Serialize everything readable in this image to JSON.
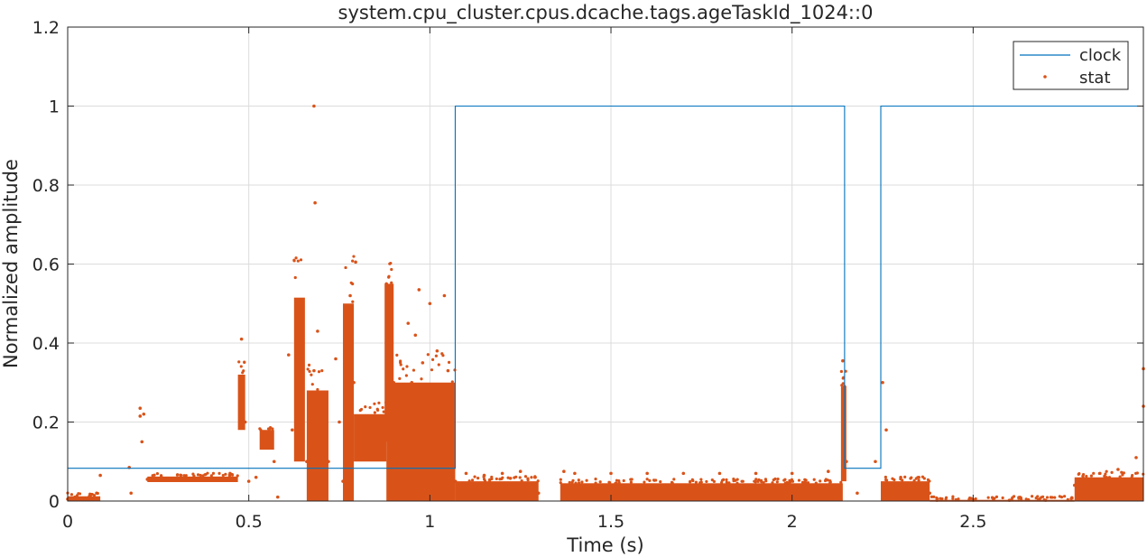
{
  "chart_data": {
    "type": "line",
    "title": "system.cpu_cluster.cpus.dcache.tags.ageTaskId_1024::0",
    "xlabel": "Time (s)",
    "ylabel": "Normalized amplitude",
    "xlim": [
      0,
      2.97
    ],
    "ylim": [
      0,
      1.2
    ],
    "grid": true,
    "legend_position": "top-right",
    "x_ticks": [
      0,
      0.5,
      1,
      1.5,
      2,
      2.5
    ],
    "x_tick_labels": [
      "0",
      "0.5",
      "1",
      "1.5",
      "2",
      "2.5"
    ],
    "y_ticks": [
      0,
      0.2,
      0.4,
      0.6,
      0.8,
      1,
      1.2
    ],
    "y_tick_labels": [
      "0",
      "0.2",
      "0.4",
      "0.6",
      "0.8",
      "1",
      "1.2"
    ],
    "series": [
      {
        "name": "clock",
        "style": "line",
        "color": "#0072BD",
        "x": [
          0,
          1.07,
          1.07,
          2.145,
          2.145,
          2.245,
          2.245,
          2.97
        ],
        "y": [
          0.083,
          0.083,
          1,
          1,
          0.083,
          0.083,
          1,
          1
        ]
      },
      {
        "name": "stat",
        "style": "markers",
        "color": "#D95319",
        "points": [
          [
            0.0,
            0.005
          ],
          [
            0.02,
            0.01
          ],
          [
            0.04,
            0.003
          ],
          [
            0.06,
            0.012
          ],
          [
            0.08,
            0.02
          ],
          [
            0.09,
            0.065
          ],
          [
            0.17,
            0.085
          ],
          [
            0.175,
            0.02
          ],
          [
            0.2,
            0.235
          ],
          [
            0.2,
            0.215
          ],
          [
            0.21,
            0.22
          ],
          [
            0.205,
            0.15
          ],
          [
            0.22,
            0.055
          ],
          [
            0.25,
            0.055
          ],
          [
            0.3,
            0.055
          ],
          [
            0.35,
            0.055
          ],
          [
            0.4,
            0.055
          ],
          [
            0.45,
            0.055
          ],
          [
            0.48,
            0.41
          ],
          [
            0.48,
            0.3
          ],
          [
            0.485,
            0.22
          ],
          [
            0.49,
            0.2
          ],
          [
            0.5,
            0.05
          ],
          [
            0.52,
            0.06
          ],
          [
            0.54,
            0.16
          ],
          [
            0.55,
            0.175
          ],
          [
            0.56,
            0.15
          ],
          [
            0.55,
            0.14
          ],
          [
            0.57,
            0.1
          ],
          [
            0.58,
            0.01
          ],
          [
            0.61,
            0.37
          ],
          [
            0.62,
            0.18
          ],
          [
            0.635,
            0.51
          ],
          [
            0.645,
            0.5
          ],
          [
            0.64,
            0.3
          ],
          [
            0.65,
            0.15
          ],
          [
            0.66,
            0.1
          ],
          [
            0.665,
            0.05
          ],
          [
            0.68,
            0.33
          ],
          [
            0.68,
            1.0
          ],
          [
            0.683,
            0.755
          ],
          [
            0.69,
            0.43
          ],
          [
            0.7,
            0.25
          ],
          [
            0.71,
            0.2
          ],
          [
            0.72,
            0.1
          ],
          [
            0.74,
            0.36
          ],
          [
            0.75,
            0.2
          ],
          [
            0.76,
            0.05
          ],
          [
            0.78,
            0.52
          ],
          [
            0.785,
            0.45
          ],
          [
            0.79,
            0.3
          ],
          [
            0.795,
            0.605
          ],
          [
            0.8,
            0.2
          ],
          [
            0.82,
            0.18
          ],
          [
            0.84,
            0.15
          ],
          [
            0.86,
            0.2
          ],
          [
            0.88,
            0.55
          ],
          [
            0.885,
            0.52
          ],
          [
            0.89,
            0.4
          ],
          [
            0.9,
            0.3
          ],
          [
            0.92,
            0.25
          ],
          [
            0.94,
            0.45
          ],
          [
            0.95,
            0.3
          ],
          [
            0.96,
            0.42
          ],
          [
            0.97,
            0.535
          ],
          [
            0.98,
            0.35
          ],
          [
            1.0,
            0.5
          ],
          [
            1.02,
            0.38
          ],
          [
            1.04,
            0.52
          ],
          [
            1.05,
            0.33
          ],
          [
            1.06,
            0.28
          ],
          [
            1.07,
            0.05
          ],
          [
            1.1,
            0.07
          ],
          [
            1.15,
            0.065
          ],
          [
            1.2,
            0.07
          ],
          [
            1.25,
            0.075
          ],
          [
            1.3,
            0.02
          ],
          [
            1.37,
            0.075
          ],
          [
            1.4,
            0.07
          ],
          [
            1.5,
            0.07
          ],
          [
            1.6,
            0.07
          ],
          [
            1.7,
            0.07
          ],
          [
            1.8,
            0.07
          ],
          [
            1.9,
            0.07
          ],
          [
            2.0,
            0.07
          ],
          [
            2.1,
            0.075
          ],
          [
            2.14,
            0.355
          ],
          [
            2.145,
            0.29
          ],
          [
            2.15,
            0.1
          ],
          [
            2.18,
            0.02
          ],
          [
            2.23,
            0.1
          ],
          [
            2.25,
            0.3
          ],
          [
            2.26,
            0.18
          ],
          [
            2.3,
            0.06
          ],
          [
            2.35,
            0.06
          ],
          [
            2.38,
            0.02
          ],
          [
            2.4,
            0.002
          ],
          [
            2.5,
            0.002
          ],
          [
            2.6,
            0.002
          ],
          [
            2.7,
            0.002
          ],
          [
            2.78,
            0.04
          ],
          [
            2.85,
            0.07
          ],
          [
            2.9,
            0.08
          ],
          [
            2.95,
            0.11
          ],
          [
            2.97,
            0.335
          ],
          [
            2.97,
            0.24
          ]
        ],
        "dense_bands": [
          {
            "x": [
              0.0,
              0.09
            ],
            "y": [
              0.0,
              0.012
            ]
          },
          {
            "x": [
              0.22,
              0.47
            ],
            "y": [
              0.048,
              0.062
            ]
          },
          {
            "x": [
              0.47,
              0.49
            ],
            "y": [
              0.18,
              0.32
            ]
          },
          {
            "x": [
              0.53,
              0.57
            ],
            "y": [
              0.13,
              0.18
            ]
          },
          {
            "x": [
              0.625,
              0.655
            ],
            "y": [
              0.1,
              0.515
            ]
          },
          {
            "x": [
              0.66,
              0.72
            ],
            "y": [
              0.0,
              0.28
            ]
          },
          {
            "x": [
              0.76,
              0.79
            ],
            "y": [
              0.0,
              0.5
            ]
          },
          {
            "x": [
              0.79,
              0.88
            ],
            "y": [
              0.1,
              0.22
            ]
          },
          {
            "x": [
              0.875,
              0.9
            ],
            "y": [
              0.15,
              0.55
            ]
          },
          {
            "x": [
              0.88,
              1.07
            ],
            "y": [
              0.0,
              0.3
            ]
          },
          {
            "x": [
              1.07,
              1.3
            ],
            "y": [
              0.0,
              0.05
            ]
          },
          {
            "x": [
              1.36,
              2.14
            ],
            "y": [
              0.0,
              0.045
            ]
          },
          {
            "x": [
              2.135,
              2.15
            ],
            "y": [
              0.05,
              0.29
            ]
          },
          {
            "x": [
              2.245,
              2.38
            ],
            "y": [
              0.0,
              0.05
            ]
          },
          {
            "x": [
              2.38,
              2.78
            ],
            "y": [
              0.0,
              0.003
            ]
          },
          {
            "x": [
              2.78,
              2.97
            ],
            "y": [
              0.0,
              0.06
            ]
          }
        ]
      }
    ]
  }
}
